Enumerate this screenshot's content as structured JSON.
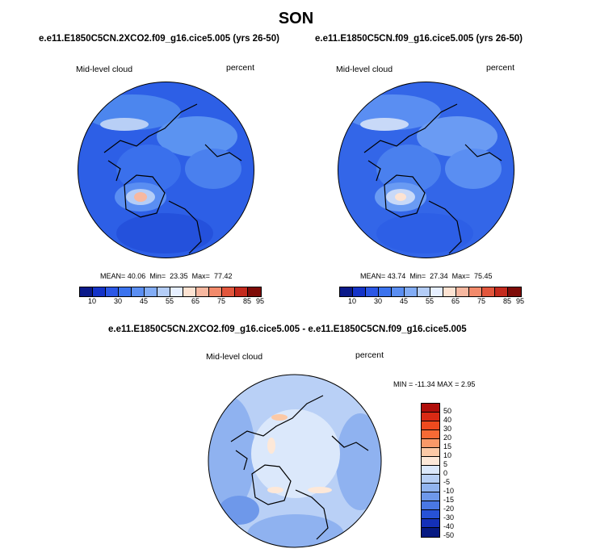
{
  "title": "SON",
  "panels": [
    {
      "case": "e.e11.E1850C5CN.2XCO2.f09_g16.cice5.005 (yrs 26-50)",
      "variable": "Mid-level cloud",
      "units": "percent",
      "mean_label": "MEAN=",
      "mean": "40.06",
      "min_label": "Min=",
      "min": "23.35",
      "max_label": "Max=",
      "max": "77.42"
    },
    {
      "case": "e.e11.E1850C5CN.f09_g16.cice5.005 (yrs 26-50)",
      "variable": "Mid-level cloud",
      "units": "percent",
      "mean_label": "MEAN=",
      "mean": "43.74",
      "min_label": "Min=",
      "min": "27.34",
      "max_label": "Max=",
      "max": "75.45"
    }
  ],
  "diff": {
    "case": "e.e11.E1850C5CN.2XCO2.f09_g16.cice5.005 - e.e11.E1850C5CN.f09_g16.cice5.005",
    "variable": "Mid-level cloud",
    "units": "percent",
    "minmax_text": "MIN = -11.34 MAX =  2.95"
  },
  "colorbar_abs": {
    "colors": [
      "#0b1a8a",
      "#1433c8",
      "#2b57e6",
      "#3b73ee",
      "#5a8ef2",
      "#82acf5",
      "#b4cdf7",
      "#e6efff",
      "#fde3d2",
      "#f7b8a0",
      "#f28a6b",
      "#e2563c",
      "#c42a1d",
      "#7e0b07"
    ],
    "tick_labels": [
      "10",
      "30",
      "45",
      "55",
      "65",
      "75",
      "85",
      "95"
    ]
  },
  "colorbar_diff": {
    "colors": [
      "#b00e0a",
      "#d92a14",
      "#ee4a1e",
      "#f76a35",
      "#f99868",
      "#fcc9a6",
      "#fde8d8",
      "#dbe8fb",
      "#b7cff5",
      "#91b4ef",
      "#6e98ea",
      "#4a78e4",
      "#2752d6",
      "#1430b8",
      "#071a82"
    ],
    "tick_labels": [
      "50",
      "40",
      "30",
      "20",
      "15",
      "10",
      "5",
      "0",
      "-5",
      "-10",
      "-15",
      "-20",
      "-30",
      "-40",
      "-50"
    ]
  },
  "icons": [
    "polar-stereographic-map",
    "coastline-outline"
  ]
}
